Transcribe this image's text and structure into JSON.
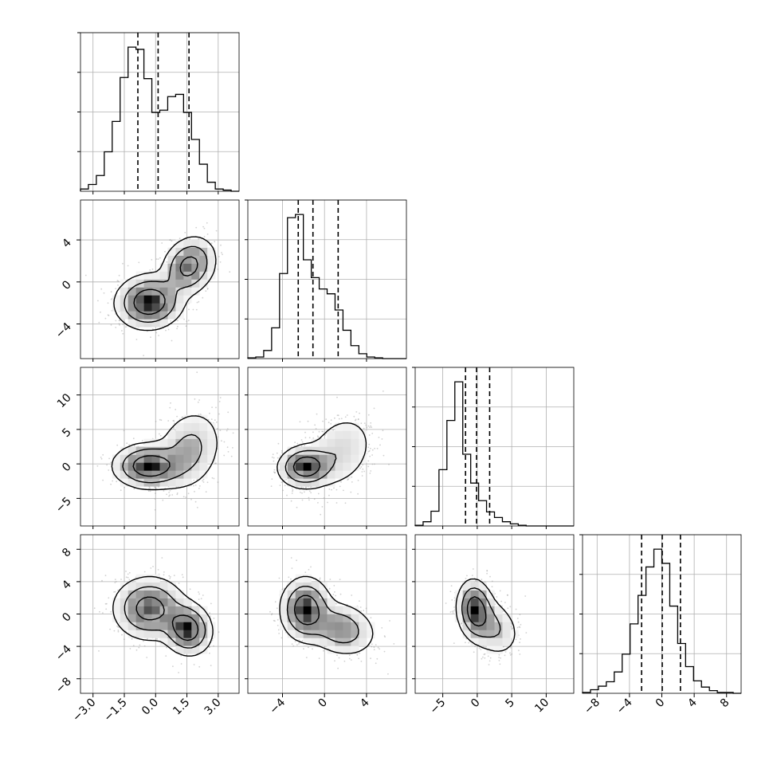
{
  "chart_data": {
    "type": "corner",
    "grid": true,
    "colors": {
      "line": "#000000",
      "grid": "#b0b0b0",
      "points": "#9a9a9a",
      "density_dark": "#000000",
      "density_light": "#ffffff"
    },
    "variables": [
      {
        "id": "x0",
        "lim": [
          -3.6,
          4.0
        ],
        "ticks": [
          -3.0,
          -1.5,
          0.0,
          1.5,
          3.0
        ],
        "tick_labels": [
          "−3.0",
          "−1.5",
          "0.0",
          "1.5",
          "3.0"
        ],
        "quantiles": [
          -0.85,
          0.12,
          1.6
        ]
      },
      {
        "id": "x1",
        "lim": [
          -7.3,
          7.8
        ],
        "ticks": [
          -4,
          0,
          4
        ],
        "tick_labels": [
          "−4",
          "0",
          "4"
        ],
        "quantiles": [
          -2.5,
          -1.1,
          1.3
        ]
      },
      {
        "id": "x2",
        "lim": [
          -9.0,
          14.0
        ],
        "ticks": [
          -5,
          0,
          5,
          10
        ],
        "tick_labels": [
          "−5",
          "0",
          "5",
          "10"
        ],
        "quantiles": [
          -1.7,
          -0.1,
          1.8
        ]
      },
      {
        "id": "x3",
        "lim": [
          -9.8,
          9.8
        ],
        "ticks": [
          -8,
          -4,
          0,
          4,
          8
        ],
        "tick_labels": [
          "−8",
          "−4",
          "0",
          "4",
          "8"
        ],
        "quantiles": [
          -2.5,
          0.05,
          2.3
        ]
      }
    ],
    "histograms": [
      {
        "var": "x0",
        "bin_start": -3.6,
        "bin_width": 0.38,
        "counts": [
          2,
          6,
          14,
          35,
          62,
          101,
          128,
          126,
          100,
          70,
          72,
          84,
          86,
          70,
          46,
          24,
          8,
          2,
          1,
          0
        ]
      },
      {
        "var": "x1",
        "bin_start": -7.3,
        "bin_width": 0.755,
        "counts": [
          1,
          2,
          10,
          38,
          105,
          174,
          178,
          122,
          100,
          86,
          80,
          60,
          35,
          16,
          6,
          2,
          1,
          0,
          0,
          0
        ]
      },
      {
        "var": "x2",
        "bin_start": -9.0,
        "bin_width": 1.15,
        "counts": [
          1,
          6,
          21,
          80,
          150,
          205,
          102,
          61,
          36,
          20,
          12,
          6,
          3,
          1,
          0,
          0,
          0,
          0,
          0,
          0
        ]
      },
      {
        "var": "x3",
        "bin_start": -9.8,
        "bin_width": 0.98,
        "counts": [
          1,
          4,
          8,
          13,
          24,
          44,
          78,
          110,
          142,
          162,
          146,
          98,
          56,
          30,
          14,
          7,
          3,
          1,
          1,
          0
        ]
      }
    ],
    "density_panels": [
      {
        "x": "x0",
        "y": "x1",
        "modes": [
          {
            "mean": [
              -0.3,
              -1.9
            ],
            "sd": [
              0.75,
              1.2
            ],
            "w": 0.6,
            "rho": 0.05
          },
          {
            "mean": [
              1.6,
              1.5
            ],
            "sd": [
              0.6,
              1.3
            ],
            "w": 0.4,
            "rho": 0.2
          }
        ]
      },
      {
        "x": "x0",
        "y": "x2",
        "modes": [
          {
            "mean": [
              -0.3,
              -0.3
            ],
            "sd": [
              0.8,
              1.5
            ],
            "w": 0.6,
            "rho": 0.0
          },
          {
            "mean": [
              1.6,
              2.0
            ],
            "sd": [
              0.75,
              2.8
            ],
            "w": 0.4,
            "rho": 0.2
          }
        ]
      },
      {
        "x": "x1",
        "y": "x2",
        "modes": [
          {
            "mean": [
              -1.8,
              -0.4
            ],
            "sd": [
              1.2,
              1.4
            ],
            "w": 0.6,
            "rho": 0.05
          },
          {
            "mean": [
              1.5,
              1.8
            ],
            "sd": [
              1.6,
              2.7
            ],
            "w": 0.4,
            "rho": 0.25
          }
        ]
      },
      {
        "x": "x0",
        "y": "x3",
        "modes": [
          {
            "mean": [
              -0.3,
              0.7
            ],
            "sd": [
              0.8,
              1.8
            ],
            "w": 0.6,
            "rho": 0.0
          },
          {
            "mean": [
              1.5,
              -1.8
            ],
            "sd": [
              0.55,
              1.5
            ],
            "w": 0.4,
            "rho": -0.1
          }
        ]
      },
      {
        "x": "x1",
        "y": "x3",
        "modes": [
          {
            "mean": [
              -1.8,
              0.6
            ],
            "sd": [
              1.1,
              1.8
            ],
            "w": 0.6,
            "rho": 0.0
          },
          {
            "mean": [
              1.5,
              -1.8
            ],
            "sd": [
              1.6,
              1.6
            ],
            "w": 0.4,
            "rho": -0.2
          }
        ]
      },
      {
        "x": "x2",
        "y": "x3",
        "modes": [
          {
            "mean": [
              -0.3,
              0.6
            ],
            "sd": [
              1.2,
              1.7
            ],
            "w": 0.6,
            "rho": -0.1
          },
          {
            "mean": [
              2.0,
              -1.5
            ],
            "sd": [
              2.0,
              1.8
            ],
            "w": 0.4,
            "rho": -0.3
          }
        ]
      }
    ],
    "contour_levels": [
      0.393,
      0.865,
      0.989
    ]
  }
}
